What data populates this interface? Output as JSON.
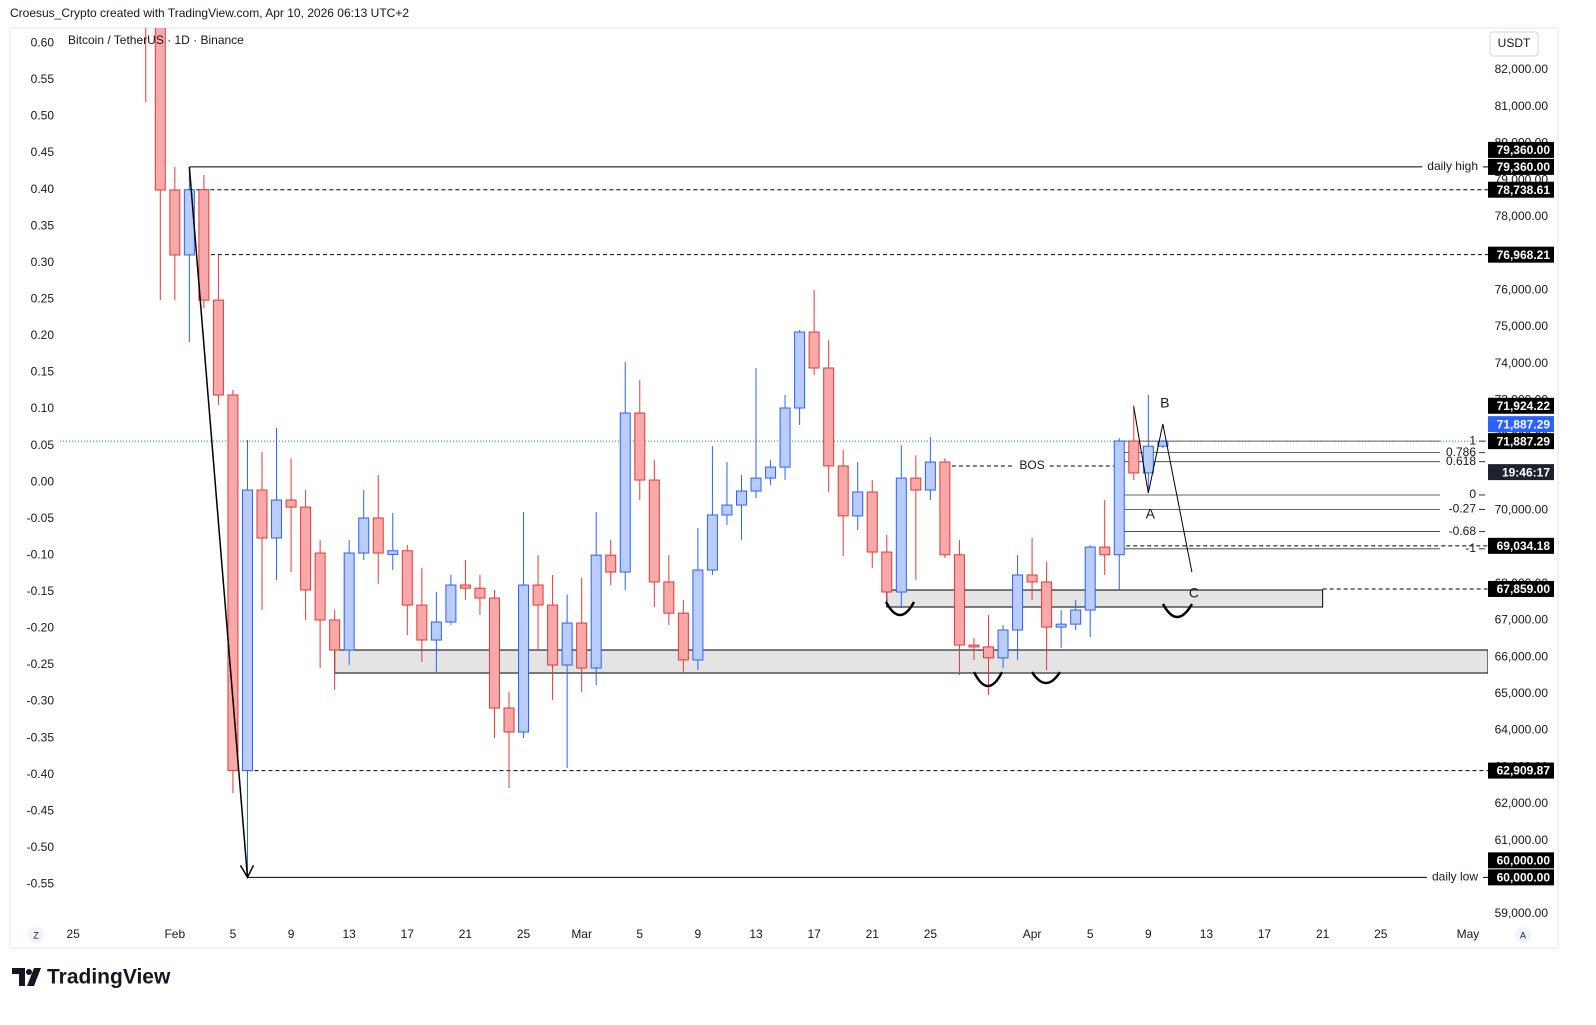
{
  "header": "Croesus_Crypto created with TradingView.com, Apr 10, 2026 06:13 UTC+2",
  "logo": "TradingView",
  "buttons": {
    "left": "Z",
    "right": "A"
  },
  "chart_data": {
    "type": "candlestick",
    "title": "Bitcoin / TetherUS · 1D · Binance",
    "currency": "USDT",
    "grid": false,
    "up_color": "#2962ff",
    "up_fill": "#b9cdf8",
    "down_color": "#e53935",
    "down_fill": "#f7a8a8",
    "x": [
      "2026-01-30",
      "2026-01-31",
      "2026-02-01",
      "2026-02-02",
      "2026-02-03",
      "2026-02-04",
      "2026-02-05",
      "2026-02-06",
      "2026-02-07",
      "2026-02-08",
      "2026-02-09",
      "2026-02-10",
      "2026-02-11",
      "2026-02-12",
      "2026-02-13",
      "2026-02-14",
      "2026-02-15",
      "2026-02-16",
      "2026-02-17",
      "2026-02-18",
      "2026-02-19",
      "2026-02-20",
      "2026-02-21",
      "2026-02-22",
      "2026-02-23",
      "2026-02-24",
      "2026-02-25",
      "2026-02-26",
      "2026-02-27",
      "2026-02-28",
      "2026-03-01",
      "2026-03-02",
      "2026-03-03",
      "2026-03-04",
      "2026-03-05",
      "2026-03-06",
      "2026-03-07",
      "2026-03-08",
      "2026-03-09",
      "2026-03-10",
      "2026-03-11",
      "2026-03-12",
      "2026-03-13",
      "2026-03-14",
      "2026-03-15",
      "2026-03-16",
      "2026-03-17",
      "2026-03-18",
      "2026-03-19",
      "2026-03-20",
      "2026-03-21",
      "2026-03-22",
      "2026-03-23",
      "2026-03-24",
      "2026-03-25",
      "2026-03-26",
      "2026-03-27",
      "2026-03-28",
      "2026-03-29",
      "2026-03-30",
      "2026-03-31",
      "2026-04-01",
      "2026-04-02",
      "2026-04-03",
      "2026-04-04",
      "2026-04-05",
      "2026-04-06",
      "2026-04-07",
      "2026-04-08",
      "2026-04-09",
      "2026-04-10"
    ],
    "open": [
      84500,
      84000,
      78730,
      76960,
      78738,
      75730,
      73144,
      62910,
      70555,
      69247,
      70282,
      70090,
      68838,
      67012,
      66195,
      68838,
      69792,
      68800,
      68900,
      67420,
      66467,
      66958,
      67966,
      67880,
      67610,
      64615,
      63960,
      67966,
      67420,
      65786,
      66930,
      65705,
      68780,
      68320,
      72653,
      70827,
      68050,
      67200,
      65925,
      68375,
      69875,
      70145,
      70527,
      70880,
      71180,
      72790,
      74860,
      73880,
      71210,
      69850,
      70500,
      68865,
      67776,
      70880,
      70555,
      71317,
      68790,
      66330,
      66280,
      65980,
      66740,
      68240,
      68050,
      66820,
      66900,
      67285,
      69000,
      68790,
      71890,
      71020,
      71750
    ],
    "high": [
      85000,
      84300,
      79360,
      79360,
      79140,
      76960,
      73280,
      71917,
      71590,
      72245,
      71420,
      70555,
      69193,
      67285,
      69193,
      70555,
      70963,
      69930,
      69056,
      68430,
      67776,
      68240,
      68650,
      68240,
      67830,
      65050,
      69955,
      68780,
      68240,
      67700,
      68160,
      69955,
      69190,
      74043,
      73550,
      71372,
      68780,
      67560,
      69520,
      71750,
      71317,
      70963,
      73880,
      71372,
      73144,
      74915,
      76005,
      74640,
      71645,
      71317,
      70827,
      69330,
      71780,
      71500,
      72000,
      71420,
      69190,
      66520,
      67150,
      66875,
      68780,
      69250,
      68600,
      67285,
      67560,
      69056,
      70282,
      71970,
      72870,
      73144,
      71924.22
    ],
    "low": [
      81130,
      75730,
      75730,
      74590,
      75500,
      72870,
      62300,
      60000,
      67285,
      68103,
      68320,
      67012,
      65706,
      65105,
      65790,
      68650,
      68000,
      68375,
      66600,
      65870,
      65600,
      66880,
      67560,
      67150,
      63797,
      62435,
      63797,
      66195,
      64832,
      62980,
      65050,
      65240,
      67966,
      67830,
      70282,
      67366,
      66875,
      65600,
      65650,
      68240,
      69600,
      69200,
      70335,
      70690,
      70827,
      72330,
      73690,
      70500,
      68760,
      69465,
      68430,
      67560,
      67340,
      68100,
      70282,
      68700,
      65515,
      65920,
      64970,
      65700,
      65925,
      67560,
      65650,
      66250,
      66740,
      66550,
      68240,
      67830,
      70827,
      70555,
      71700
    ],
    "close": [
      84000,
      78730,
      76960,
      78738,
      75730,
      73144,
      62910,
      70555,
      69247,
      70282,
      70090,
      67830,
      67012,
      66195,
      68838,
      69792,
      68838,
      68900,
      67420,
      66467,
      66958,
      67966,
      67880,
      67610,
      64615,
      63960,
      67966,
      67420,
      65786,
      66930,
      65705,
      68780,
      68320,
      72653,
      70827,
      68050,
      67200,
      65925,
      68375,
      69875,
      70145,
      70527,
      70880,
      71180,
      72790,
      74860,
      73880,
      71210,
      69850,
      70500,
      68865,
      67776,
      70880,
      70555,
      71317,
      68790,
      66330,
      66280,
      65980,
      66740,
      68240,
      68050,
      66820,
      66900,
      67285,
      69000,
      68790,
      71890,
      71020,
      71750,
      71887.29
    ],
    "xlim": [
      "2026-01-21",
      "2026-05-02"
    ],
    "xticks": [
      {
        "value": "2026-01-25",
        "label": "25"
      },
      {
        "value": "2026-02-01",
        "label": "Feb"
      },
      {
        "value": "2026-02-05",
        "label": "5"
      },
      {
        "value": "2026-02-09",
        "label": "9"
      },
      {
        "value": "2026-02-13",
        "label": "13"
      },
      {
        "value": "2026-02-17",
        "label": "17"
      },
      {
        "value": "2026-02-21",
        "label": "21"
      },
      {
        "value": "2026-02-25",
        "label": "25"
      },
      {
        "value": "2026-03-01",
        "label": "Mar"
      },
      {
        "value": "2026-03-05",
        "label": "5"
      },
      {
        "value": "2026-03-09",
        "label": "9"
      },
      {
        "value": "2026-03-13",
        "label": "13"
      },
      {
        "value": "2026-03-17",
        "label": "17"
      },
      {
        "value": "2026-03-21",
        "label": "21"
      },
      {
        "value": "2026-03-25",
        "label": "25"
      },
      {
        "value": "2026-04-01",
        "label": "Apr"
      },
      {
        "value": "2026-04-05",
        "label": "5"
      },
      {
        "value": "2026-04-09",
        "label": "9"
      },
      {
        "value": "2026-04-13",
        "label": "13"
      },
      {
        "value": "2026-04-17",
        "label": "17"
      },
      {
        "value": "2026-04-21",
        "label": "21"
      },
      {
        "value": "2026-04-25",
        "label": "25"
      },
      {
        "value": "2026-05-01",
        "label": "May"
      }
    ],
    "ylim": [
      58075,
      83145
    ],
    "yticks": [
      {
        "value": 59000,
        "label": "59,000.00"
      },
      {
        "value": 60000,
        "label": "60,000.00"
      },
      {
        "value": 61000,
        "label": "61,000.00"
      },
      {
        "value": 62000,
        "label": "62,000.00"
      },
      {
        "value": 63000,
        "label": "63,000.00"
      },
      {
        "value": 64000,
        "label": "64,000.00"
      },
      {
        "value": 65000,
        "label": "65,000.00"
      },
      {
        "value": 66000,
        "label": "66,000.00"
      },
      {
        "value": 67000,
        "label": "67,000.00"
      },
      {
        "value": 68000,
        "label": "68,000.00"
      },
      {
        "value": 69000,
        "label": "69,000.00"
      },
      {
        "value": 70000,
        "label": "70,000.00"
      },
      {
        "value": 71000,
        "label": "71,000.00"
      },
      {
        "value": 72000,
        "label": "72,000.00"
      },
      {
        "value": 73000,
        "label": "73,000.00"
      },
      {
        "value": 74000,
        "label": "74,000.00"
      },
      {
        "value": 75000,
        "label": "75,000.00"
      },
      {
        "value": 76000,
        "label": "76,000.00"
      },
      {
        "value": 77000,
        "label": "77,000.00"
      },
      {
        "value": 78000,
        "label": "78,000.00"
      },
      {
        "value": 79000,
        "label": "79,000.00"
      },
      {
        "value": 80000,
        "label": "80,000.00"
      },
      {
        "value": 81000,
        "label": "81,000.00"
      },
      {
        "value": 82000,
        "label": "82,000.00"
      }
    ],
    "y2lim": [
      -0.637,
      0.621
    ],
    "y2ticks": [
      {
        "value": 0.6,
        "label": "0.60"
      },
      0.55,
      {
        "value": 0.5,
        "label": "0.50"
      },
      0.45,
      {
        "value": 0.4,
        "label": "0.40"
      },
      0.35,
      {
        "value": 0.3,
        "label": "0.30"
      },
      0.25,
      {
        "value": 0.2,
        "label": "0.20"
      },
      0.15,
      {
        "value": 0.1,
        "label": "0.10"
      },
      0.05,
      {
        "value": 0,
        "label": "0.00"
      },
      -0.05,
      {
        "value": -0.1,
        "label": "-0.10"
      },
      -0.15,
      {
        "value": -0.2,
        "label": "-0.20"
      },
      -0.25,
      {
        "value": -0.3,
        "label": "-0.30"
      },
      -0.35,
      {
        "value": -0.4,
        "label": "-0.40"
      },
      -0.45,
      {
        "value": -0.5,
        "label": "-0.50"
      },
      -0.55
    ],
    "last_price": 71887.29,
    "last_color": "#089981",
    "countdown": "19:46:17",
    "price_labels": [
      {
        "value": 79360,
        "label": "79,360.00",
        "color": "#000000"
      },
      {
        "value": 79360,
        "label": "79,360.00",
        "color": "#000000"
      },
      {
        "value": 78738.61,
        "label": "78,738.61",
        "color": "#000000"
      },
      {
        "value": 76968.21,
        "label": "76,968.21",
        "color": "#000000"
      },
      {
        "value": 71887.29,
        "label": "71,887.29",
        "color": "#000000"
      },
      {
        "value": 71887.29,
        "label": "71,887.29",
        "color": "#2962ff"
      },
      {
        "value": 71924.22,
        "label": "71,924.22",
        "color": "#000000"
      },
      {
        "value": 69034.18,
        "label": "69,034.18",
        "color": "#000000"
      },
      {
        "value": 67859,
        "label": "67,859.00",
        "color": "#000000"
      },
      {
        "value": 62909.87,
        "label": "62,909.87",
        "color": "#000000"
      },
      {
        "value": 60000,
        "label": "60,000.00",
        "color": "#000000"
      },
      {
        "value": 60000,
        "label": "60,000.00",
        "color": "#000000"
      }
    ],
    "lines": [
      {
        "name": "daily high",
        "value": 79360,
        "from": "2026-02-02",
        "style": "solid"
      },
      {
        "value": 78738.61,
        "from": "2026-02-02",
        "style": "dashed"
      },
      {
        "value": 76968.21,
        "from": "2026-02-03",
        "style": "dashed"
      },
      {
        "value": 62909.87,
        "from": "2026-02-06",
        "style": "dashed"
      },
      {
        "name": "daily low",
        "value": 60000,
        "from": "2026-02-06",
        "style": "solid"
      },
      {
        "value": 69034.18,
        "from": "2026-04-07",
        "style": "dashed"
      },
      {
        "value": 67859,
        "from": "2026-04-21",
        "style": "dashed"
      },
      {
        "name": "BOS",
        "value": 71210,
        "from": "2026-03-26",
        "to": "2026-04-07",
        "style": "dashed"
      }
    ],
    "zones": [
      {
        "from": "2026-02-12",
        "top": 66195,
        "bottom": 65568
      },
      {
        "from": "2026-03-22",
        "to": "2026-04-21",
        "top": 67830,
        "bottom": 67367
      }
    ],
    "fib": {
      "from": "2026-04-07",
      "p0": 70420,
      "p1": 71887.29,
      "levels": [
        1,
        0.786,
        0.618,
        0,
        -0.27,
        -0.68,
        -1
      ]
    },
    "trend": [
      {
        "x": "2026-02-02",
        "y": 79360
      },
      {
        "x": "2026-02-06",
        "y": 60000
      }
    ],
    "wave": [
      {
        "x": "2026-04-08",
        "y": 72817
      },
      {
        "x": "2026-04-09",
        "y": 70473,
        "label": "A"
      },
      {
        "x": "2026-04-10",
        "y": 72354,
        "label": "B"
      },
      {
        "x": "2026-04-12",
        "y": 68320,
        "label": "C"
      }
    ]
  }
}
